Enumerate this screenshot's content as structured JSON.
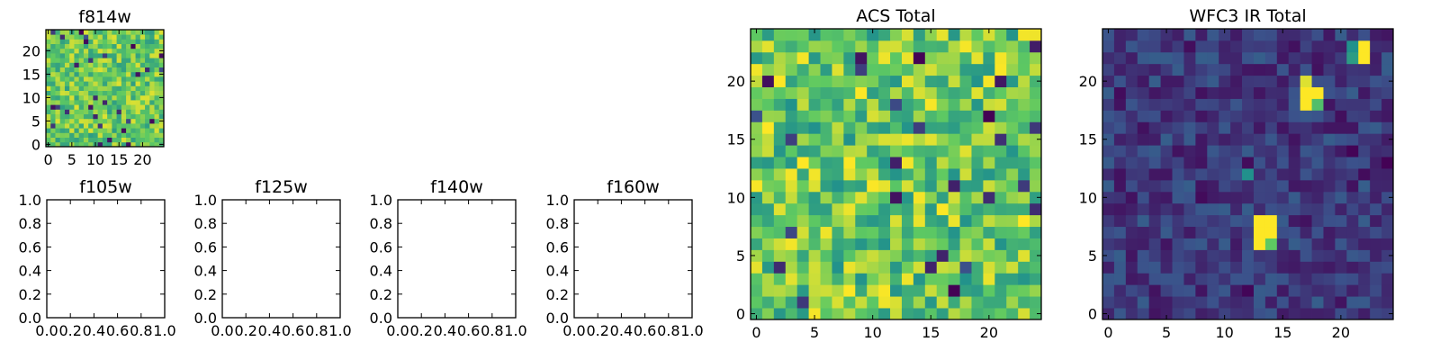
{
  "figure": {
    "description": "Grid of image thumbnails for HST filters plus ACS and WFC3 IR totals"
  },
  "colors": {
    "frame": "#000000",
    "background": "#ffffff"
  },
  "colormap": [
    "#440154",
    "#3b528b",
    "#21918c",
    "#5ec962",
    "#fde725"
  ],
  "chart_data": [
    {
      "type": "heatmap",
      "title": "f814w",
      "xlim": [
        -0.5,
        24.5
      ],
      "ylim": [
        -0.5,
        24.5
      ],
      "xticks": [
        0,
        5,
        10,
        15,
        20
      ],
      "xtick_labels": [
        "0",
        "5",
        "10",
        "15",
        "20"
      ],
      "yticks": [
        0,
        5,
        10,
        15,
        20
      ],
      "ytick_labels": [
        "0",
        "5",
        "10",
        "15",
        "20"
      ],
      "grid_size": [
        25,
        25
      ],
      "pattern": "noise",
      "seed": 11,
      "value_range": [
        0.55,
        0.95
      ],
      "dark_fraction": 0.04,
      "hotspots": []
    },
    {
      "type": "heatmap",
      "title": "f105w",
      "xlim": [
        0,
        1
      ],
      "ylim": [
        0,
        1
      ],
      "xticks": [
        0,
        0.2,
        0.4,
        0.6,
        0.8,
        1.0
      ],
      "xtick_labels": [
        "0.0",
        "0.2",
        "0.4",
        "0.6",
        "0.8",
        "1.0"
      ],
      "yticks": [
        0,
        0.2,
        0.4,
        0.6,
        0.8,
        1.0
      ],
      "ytick_labels": [
        "0.0",
        "0.2",
        "0.4",
        "0.6",
        "0.8",
        "1.0"
      ],
      "pattern": "empty"
    },
    {
      "type": "heatmap",
      "title": "f125w",
      "xlim": [
        0,
        1
      ],
      "ylim": [
        0,
        1
      ],
      "xticks": [
        0,
        0.2,
        0.4,
        0.6,
        0.8,
        1.0
      ],
      "xtick_labels": [
        "0.0",
        "0.2",
        "0.4",
        "0.6",
        "0.8",
        "1.0"
      ],
      "yticks": [
        0,
        0.2,
        0.4,
        0.6,
        0.8,
        1.0
      ],
      "ytick_labels": [
        "0.0",
        "0.2",
        "0.4",
        "0.6",
        "0.8",
        "1.0"
      ],
      "pattern": "empty"
    },
    {
      "type": "heatmap",
      "title": "f140w",
      "xlim": [
        0,
        1
      ],
      "ylim": [
        0,
        1
      ],
      "xticks": [
        0,
        0.2,
        0.4,
        0.6,
        0.8,
        1.0
      ],
      "xtick_labels": [
        "0.0",
        "0.2",
        "0.4",
        "0.6",
        "0.8",
        "1.0"
      ],
      "yticks": [
        0,
        0.2,
        0.4,
        0.6,
        0.8,
        1.0
      ],
      "ytick_labels": [
        "0.0",
        "0.2",
        "0.4",
        "0.6",
        "0.8",
        "1.0"
      ],
      "pattern": "empty"
    },
    {
      "type": "heatmap",
      "title": "f160w",
      "xlim": [
        0,
        1
      ],
      "ylim": [
        0,
        1
      ],
      "xticks": [
        0,
        0.2,
        0.4,
        0.6,
        0.8,
        1.0
      ],
      "xtick_labels": [
        "0.0",
        "0.2",
        "0.4",
        "0.6",
        "0.8",
        "1.0"
      ],
      "yticks": [
        0,
        0.2,
        0.4,
        0.6,
        0.8,
        1.0
      ],
      "ytick_labels": [
        "0.0",
        "0.2",
        "0.4",
        "0.6",
        "0.8",
        "1.0"
      ],
      "pattern": "empty"
    },
    {
      "type": "heatmap",
      "title": "ACS Total",
      "xlim": [
        -0.5,
        24.5
      ],
      "ylim": [
        -0.5,
        24.5
      ],
      "xticks": [
        0,
        5,
        10,
        15,
        20
      ],
      "xtick_labels": [
        "0",
        "5",
        "10",
        "15",
        "20"
      ],
      "yticks": [
        0,
        5,
        10,
        15,
        20
      ],
      "ytick_labels": [
        "0",
        "5",
        "10",
        "15",
        "20"
      ],
      "grid_size": [
        25,
        25
      ],
      "pattern": "noise",
      "seed": 7,
      "value_range": [
        0.5,
        1.0
      ],
      "dark_fraction": 0.03,
      "hotspots": []
    },
    {
      "type": "heatmap",
      "title": "WFC3 IR Total",
      "xlim": [
        -0.5,
        24.5
      ],
      "ylim": [
        -0.5,
        24.5
      ],
      "xticks": [
        0,
        5,
        10,
        15,
        20
      ],
      "xtick_labels": [
        "0",
        "5",
        "10",
        "15",
        "20"
      ],
      "yticks": [
        0,
        5,
        10,
        15,
        20
      ],
      "ytick_labels": [
        "0",
        "5",
        "10",
        "15",
        "20"
      ],
      "grid_size": [
        25,
        25
      ],
      "pattern": "noise",
      "seed": 3,
      "value_range": [
        0.05,
        0.3
      ],
      "dark_fraction": 0.06,
      "hotspots": [
        {
          "x": 13,
          "y": 7,
          "value": 1.0
        },
        {
          "x": 14,
          "y": 7,
          "value": 1.0
        },
        {
          "x": 13,
          "y": 6,
          "value": 1.0
        },
        {
          "x": 14,
          "y": 6,
          "value": 0.75
        },
        {
          "x": 13,
          "y": 8,
          "value": 1.0
        },
        {
          "x": 14,
          "y": 8,
          "value": 1.0
        },
        {
          "x": 17,
          "y": 19,
          "value": 1.0
        },
        {
          "x": 18,
          "y": 19,
          "value": 1.0
        },
        {
          "x": 17,
          "y": 18,
          "value": 1.0
        },
        {
          "x": 18,
          "y": 18,
          "value": 0.7
        },
        {
          "x": 17,
          "y": 20,
          "value": 0.95
        },
        {
          "x": 22,
          "y": 23,
          "value": 1.0
        },
        {
          "x": 22,
          "y": 22,
          "value": 1.0
        },
        {
          "x": 21,
          "y": 22,
          "value": 0.55
        },
        {
          "x": 21,
          "y": 23,
          "value": 0.5
        },
        {
          "x": 12,
          "y": 12,
          "value": 0.5
        }
      ]
    }
  ]
}
